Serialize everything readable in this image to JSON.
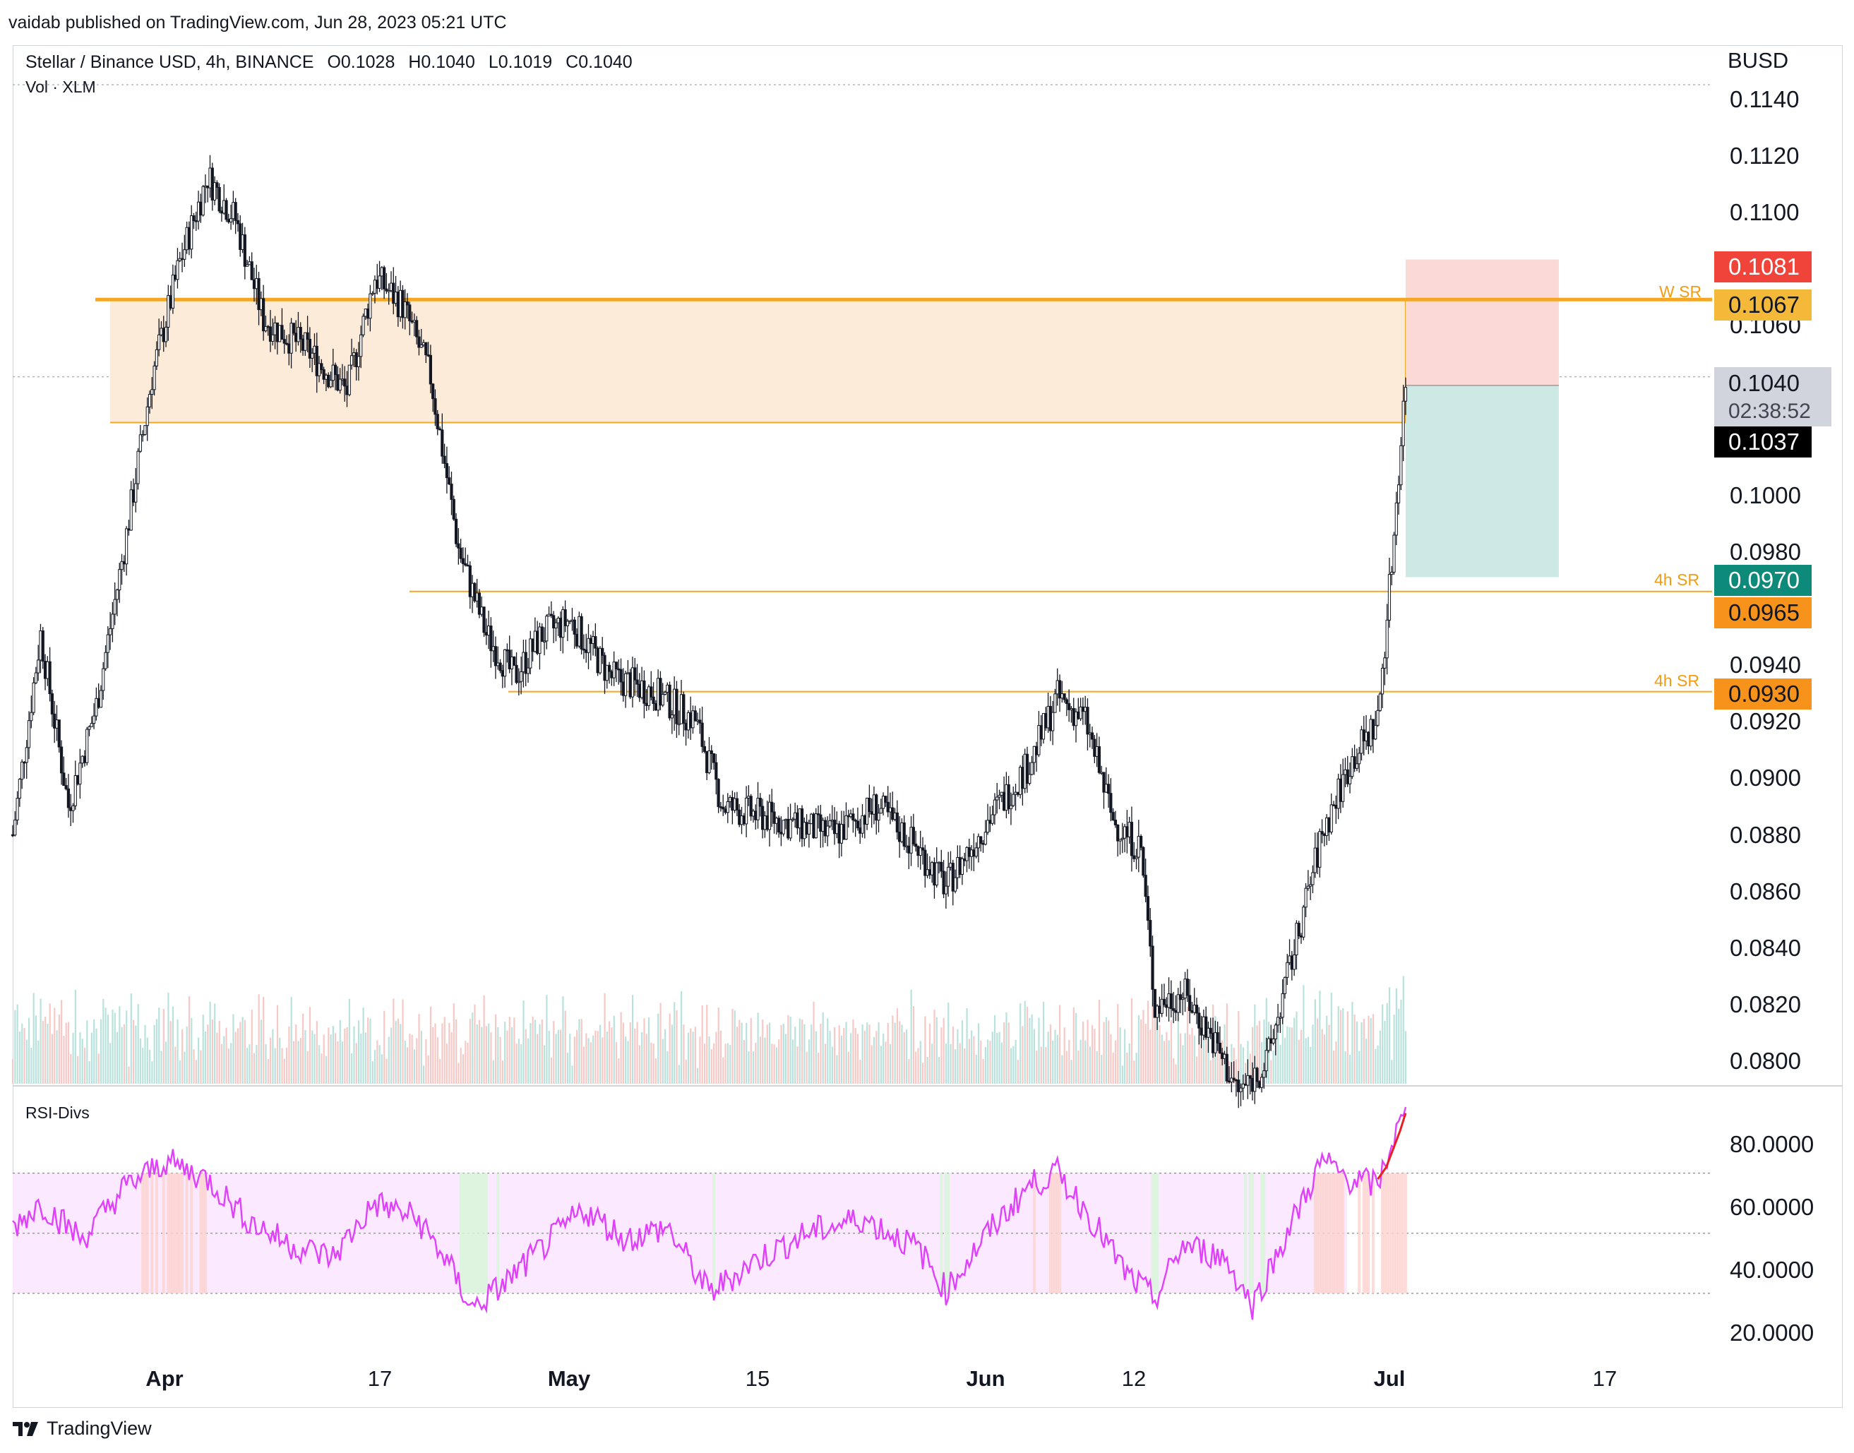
{
  "header": {
    "credit": "vaidab published on TradingView.com, Jun 28, 2023 05:21 UTC"
  },
  "legend": {
    "symbol": "Stellar / Binance USD, 4h, BINANCE",
    "open": "O0.1028",
    "high": "H0.1040",
    "low": "L0.1019",
    "close": "C0.1040",
    "volume_label": "Vol · XLM",
    "rsi_label": "RSI-Divs"
  },
  "price_axis": {
    "currency": "BUSD",
    "ticks": [
      "0.1140",
      "0.1120",
      "0.1100",
      "0.1060",
      "0.1000",
      "0.0980",
      "0.0940",
      "0.0920",
      "0.0900",
      "0.0880",
      "0.0860",
      "0.0840",
      "0.0820",
      "0.0800"
    ]
  },
  "badges": {
    "stop": "0.1081",
    "w_sr": "0.1067",
    "last": "0.1040",
    "countdown": "02:38:52",
    "entry": "0.1037",
    "target": "0.0970",
    "sr1": "0.0965",
    "sr2": "0.0930"
  },
  "zone_labels": {
    "w_sr": "W SR",
    "h4_sr_1": "4h SR",
    "h4_sr_2": "4h SR"
  },
  "rsi_axis": {
    "ticks": [
      "80.0000",
      "60.0000",
      "40.0000",
      "20.0000"
    ]
  },
  "time_axis": {
    "labels": [
      {
        "text": "Apr",
        "bold": true
      },
      {
        "text": "17",
        "bold": false
      },
      {
        "text": "May",
        "bold": true
      },
      {
        "text": "15",
        "bold": false
      },
      {
        "text": "Jun",
        "bold": true
      },
      {
        "text": "12",
        "bold": false
      },
      {
        "text": "Jul",
        "bold": true
      },
      {
        "text": "17",
        "bold": false
      }
    ]
  },
  "footer": {
    "brand": "TradingView"
  },
  "colors": {
    "zone_fill": "#fdebd9",
    "zone_line": "#f5a623",
    "stop_zone": "#fbd9d7",
    "target_zone": "#cde9e5",
    "stop_badge": "#f0433a",
    "w_badge": "#f5b93a",
    "target_badge": "#0d8a7a",
    "sr_badge": "#f7931a",
    "rsi_line": "#e040fb",
    "rsi_band": "#fbeaff"
  },
  "chart_data": {
    "type": "candlestick",
    "timeframe": "4h",
    "x_range": [
      "2023-03-20",
      "2023-07-20"
    ],
    "ylim": [
      0.0793,
      0.1145
    ],
    "levels": [
      {
        "name": "W SR",
        "value": 0.1067
      },
      {
        "name": "4h SR",
        "value": 0.0965
      },
      {
        "name": "4h SR",
        "value": 0.093
      }
    ],
    "supply_zone": {
      "top": 0.1067,
      "bottom": 0.1024,
      "from": "2023-03-27",
      "to": "2023-06-28"
    },
    "position": {
      "entry": 0.1037,
      "stop": 0.1081,
      "target": 0.097,
      "from": "2023-06-28",
      "to": "2023-07-09"
    },
    "price_path": [
      {
        "date": "2023-03-20",
        "price": 0.088
      },
      {
        "date": "2023-03-22",
        "price": 0.095
      },
      {
        "date": "2023-03-24",
        "price": 0.089
      },
      {
        "date": "2023-03-26",
        "price": 0.0925
      },
      {
        "date": "2023-03-28",
        "price": 0.098
      },
      {
        "date": "2023-03-30",
        "price": 0.104
      },
      {
        "date": "2023-04-01",
        "price": 0.108
      },
      {
        "date": "2023-04-03",
        "price": 0.111
      },
      {
        "date": "2023-04-05",
        "price": 0.1095
      },
      {
        "date": "2023-04-07",
        "price": 0.106
      },
      {
        "date": "2023-04-10",
        "price": 0.105
      },
      {
        "date": "2023-04-13",
        "price": 0.1035
      },
      {
        "date": "2023-04-15",
        "price": 0.1075
      },
      {
        "date": "2023-04-17",
        "price": 0.1065
      },
      {
        "date": "2023-04-19",
        "price": 0.104
      },
      {
        "date": "2023-04-21",
        "price": 0.098
      },
      {
        "date": "2023-04-23",
        "price": 0.095
      },
      {
        "date": "2023-04-25",
        "price": 0.0935
      },
      {
        "date": "2023-04-27",
        "price": 0.095
      },
      {
        "date": "2023-04-29",
        "price": 0.0955
      },
      {
        "date": "2023-05-02",
        "price": 0.0935
      },
      {
        "date": "2023-05-05",
        "price": 0.093
      },
      {
        "date": "2023-05-08",
        "price": 0.092
      },
      {
        "date": "2023-05-10",
        "price": 0.089
      },
      {
        "date": "2023-05-14",
        "price": 0.0885
      },
      {
        "date": "2023-05-18",
        "price": 0.088
      },
      {
        "date": "2023-05-21",
        "price": 0.089
      },
      {
        "date": "2023-05-24",
        "price": 0.0875
      },
      {
        "date": "2023-05-26",
        "price": 0.0862
      },
      {
        "date": "2023-05-29",
        "price": 0.0885
      },
      {
        "date": "2023-06-01",
        "price": 0.0905
      },
      {
        "date": "2023-06-03",
        "price": 0.0928
      },
      {
        "date": "2023-06-05",
        "price": 0.092
      },
      {
        "date": "2023-06-07",
        "price": 0.0885
      },
      {
        "date": "2023-06-09",
        "price": 0.0875
      },
      {
        "date": "2023-06-10",
        "price": 0.082
      },
      {
        "date": "2023-06-12",
        "price": 0.0825
      },
      {
        "date": "2023-06-14",
        "price": 0.081
      },
      {
        "date": "2023-06-16",
        "price": 0.079
      },
      {
        "date": "2023-06-18",
        "price": 0.08
      },
      {
        "date": "2023-06-20",
        "price": 0.084
      },
      {
        "date": "2023-06-22",
        "price": 0.088
      },
      {
        "date": "2023-06-24",
        "price": 0.0905
      },
      {
        "date": "2023-06-26",
        "price": 0.092
      },
      {
        "date": "2023-06-27",
        "price": 0.0975
      },
      {
        "date": "2023-06-28",
        "price": 0.104
      }
    ],
    "rsi": {
      "ylim": [
        14,
        92
      ],
      "bands": {
        "upper": 70,
        "middle": 50,
        "lower": 30
      },
      "path": [
        {
          "date": "2023-03-20",
          "value": 52
        },
        {
          "date": "2023-03-22",
          "value": 60
        },
        {
          "date": "2023-03-25",
          "value": 48
        },
        {
          "date": "2023-03-28",
          "value": 65
        },
        {
          "date": "2023-03-31",
          "value": 74
        },
        {
          "date": "2023-04-03",
          "value": 68
        },
        {
          "date": "2023-04-06",
          "value": 54
        },
        {
          "date": "2023-04-09",
          "value": 46
        },
        {
          "date": "2023-04-12",
          "value": 42
        },
        {
          "date": "2023-04-15",
          "value": 60
        },
        {
          "date": "2023-04-18",
          "value": 55
        },
        {
          "date": "2023-04-20",
          "value": 42
        },
        {
          "date": "2023-04-22",
          "value": 25
        },
        {
          "date": "2023-04-24",
          "value": 32
        },
        {
          "date": "2023-04-27",
          "value": 45
        },
        {
          "date": "2023-04-30",
          "value": 58
        },
        {
          "date": "2023-05-03",
          "value": 48
        },
        {
          "date": "2023-05-06",
          "value": 52
        },
        {
          "date": "2023-05-09",
          "value": 30
        },
        {
          "date": "2023-05-12",
          "value": 40
        },
        {
          "date": "2023-05-16",
          "value": 50
        },
        {
          "date": "2023-05-20",
          "value": 55
        },
        {
          "date": "2023-05-24",
          "value": 45
        },
        {
          "date": "2023-05-26",
          "value": 31
        },
        {
          "date": "2023-05-29",
          "value": 50
        },
        {
          "date": "2023-06-01",
          "value": 66
        },
        {
          "date": "2023-06-03",
          "value": 70
        },
        {
          "date": "2023-06-05",
          "value": 58
        },
        {
          "date": "2023-06-08",
          "value": 36
        },
        {
          "date": "2023-06-10",
          "value": 28
        },
        {
          "date": "2023-06-12",
          "value": 46
        },
        {
          "date": "2023-06-15",
          "value": 42
        },
        {
          "date": "2023-06-17",
          "value": 26
        },
        {
          "date": "2023-06-20",
          "value": 55
        },
        {
          "date": "2023-06-22",
          "value": 74
        },
        {
          "date": "2023-06-24",
          "value": 68
        },
        {
          "date": "2023-06-26",
          "value": 66
        },
        {
          "date": "2023-06-27",
          "value": 80
        },
        {
          "date": "2023-06-28",
          "value": 90
        }
      ]
    }
  }
}
